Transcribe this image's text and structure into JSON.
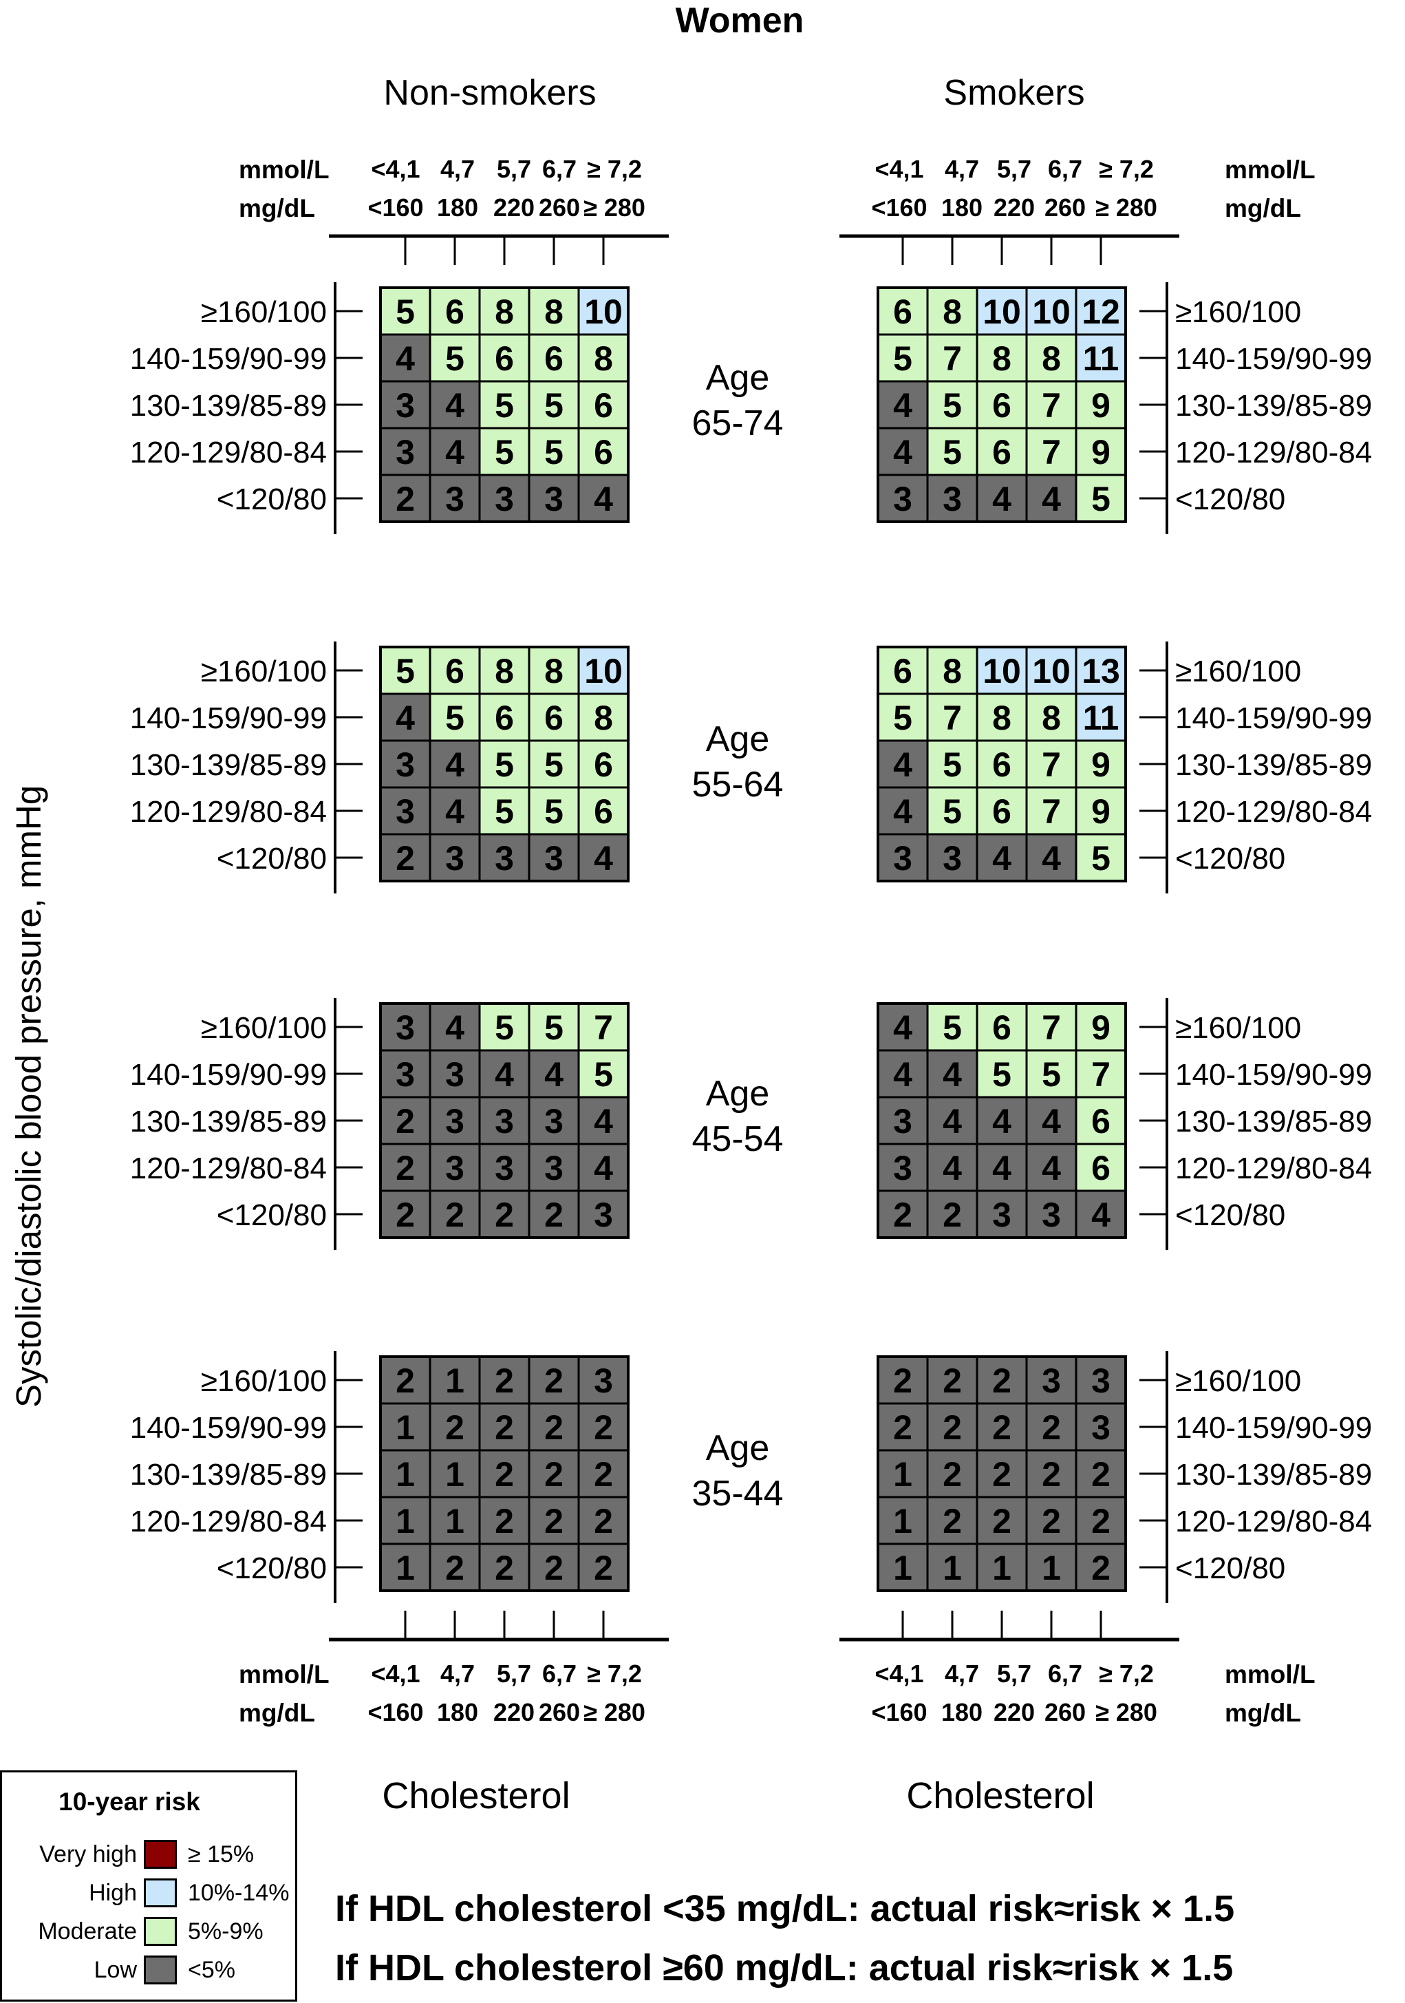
{
  "title": "Women",
  "groups": {
    "left": "Non-smokers",
    "right": "Smokers"
  },
  "axis_labels": {
    "mmol_label": "mmol/L",
    "mgdl_label": "mg/dL",
    "mmol_left": [
      "<4,1",
      "4,7",
      "5,7",
      "6,7",
      "≥ 7,2"
    ],
    "mgdl_left": [
      "<160",
      "180",
      "220",
      "260",
      "≥ 280"
    ]
  },
  "ylabel": "Systolic/diastolic blood pressure, mmHg",
  "bp_levels": [
    "≥160/100",
    "140-159/90-99",
    "130-139/85-89",
    "120-129/80-84",
    "<120/80"
  ],
  "ages": [
    {
      "l1": "Age",
      "l2": "65-74"
    },
    {
      "l1": "Age",
      "l2": "55-64"
    },
    {
      "l1": "Age",
      "l2": "45-54"
    },
    {
      "l1": "Age",
      "l2": "35-44"
    }
  ],
  "xlabel": "Cholesterol",
  "legend": {
    "title": "10-year risk",
    "items": [
      {
        "name": "Very high",
        "range": "≥ 15%",
        "color": "#8b0000"
      },
      {
        "name": "High",
        "range": "10%-14%",
        "color": "#c9e6fa"
      },
      {
        "name": "Moderate",
        "range": "5%-9%",
        "color": "#d1f6c2"
      },
      {
        "name": "Low",
        "range": "<5%",
        "color": "#6e6e6e"
      }
    ]
  },
  "notes": [
    "If HDL cholesterol <35 mg/dL: actual risk≈risk × 1.5",
    "If HDL cholesterol ≥60 mg/dL: actual risk≈risk × 1.5"
  ],
  "chart_data": {
    "type": "heatmap",
    "title": "Women",
    "x_categories_mmol": [
      "<4,1",
      "4,7",
      "5,7",
      "6,7",
      "≥ 7,2"
    ],
    "x_categories_mgdl": [
      "<160",
      "180",
      "220",
      "260",
      "≥ 280"
    ],
    "y_categories": [
      "≥160/100",
      "140-159/90-99",
      "130-139/85-89",
      "120-129/80-84",
      "<120/80"
    ],
    "xlabel": "Cholesterol",
    "ylabel": "Systolic/diastolic blood pressure, mmHg",
    "value_unit": "10-year risk (%)",
    "panels": [
      {
        "smoking": "Non-smokers",
        "age": "65-74",
        "values": [
          [
            5,
            6,
            8,
            8,
            10
          ],
          [
            4,
            5,
            6,
            6,
            8
          ],
          [
            3,
            4,
            5,
            5,
            6
          ],
          [
            3,
            4,
            5,
            5,
            6
          ],
          [
            2,
            3,
            3,
            3,
            4
          ]
        ]
      },
      {
        "smoking": "Smokers",
        "age": "65-74",
        "values": [
          [
            6,
            8,
            10,
            10,
            12
          ],
          [
            5,
            7,
            8,
            8,
            11
          ],
          [
            4,
            5,
            6,
            7,
            9
          ],
          [
            4,
            5,
            6,
            7,
            9
          ],
          [
            3,
            3,
            4,
            4,
            5
          ]
        ]
      },
      {
        "smoking": "Non-smokers",
        "age": "55-64",
        "values": [
          [
            5,
            6,
            8,
            8,
            10
          ],
          [
            4,
            5,
            6,
            6,
            8
          ],
          [
            3,
            4,
            5,
            5,
            6
          ],
          [
            3,
            4,
            5,
            5,
            6
          ],
          [
            2,
            3,
            3,
            3,
            4
          ]
        ]
      },
      {
        "smoking": "Smokers",
        "age": "55-64",
        "values": [
          [
            6,
            8,
            10,
            10,
            13
          ],
          [
            5,
            7,
            8,
            8,
            11
          ],
          [
            4,
            5,
            6,
            7,
            9
          ],
          [
            4,
            5,
            6,
            7,
            9
          ],
          [
            3,
            3,
            4,
            4,
            5
          ]
        ]
      },
      {
        "smoking": "Non-smokers",
        "age": "45-54",
        "values": [
          [
            3,
            4,
            5,
            5,
            7
          ],
          [
            3,
            3,
            4,
            4,
            5
          ],
          [
            2,
            3,
            3,
            3,
            4
          ],
          [
            2,
            3,
            3,
            3,
            4
          ],
          [
            2,
            2,
            2,
            2,
            3
          ]
        ]
      },
      {
        "smoking": "Smokers",
        "age": "45-54",
        "values": [
          [
            4,
            5,
            6,
            7,
            9
          ],
          [
            4,
            4,
            5,
            5,
            7
          ],
          [
            3,
            4,
            4,
            4,
            6
          ],
          [
            3,
            4,
            4,
            4,
            6
          ],
          [
            2,
            2,
            3,
            3,
            4
          ]
        ]
      },
      {
        "smoking": "Non-smokers",
        "age": "35-44",
        "values": [
          [
            2,
            1,
            2,
            2,
            3
          ],
          [
            1,
            2,
            2,
            2,
            2
          ],
          [
            1,
            1,
            2,
            2,
            2
          ],
          [
            1,
            1,
            2,
            2,
            2
          ],
          [
            1,
            2,
            2,
            2,
            2
          ]
        ]
      },
      {
        "smoking": "Smokers",
        "age": "35-44",
        "values": [
          [
            2,
            2,
            2,
            3,
            3
          ],
          [
            2,
            2,
            2,
            2,
            3
          ],
          [
            1,
            2,
            2,
            2,
            2
          ],
          [
            1,
            2,
            2,
            2,
            2
          ],
          [
            1,
            1,
            1,
            1,
            2
          ]
        ]
      }
    ],
    "risk_categories": [
      {
        "name": "Very high",
        "range": "≥ 15%",
        "color": "#8b0000"
      },
      {
        "name": "High",
        "range": "10%-14%",
        "color": "#c9e6fa"
      },
      {
        "name": "Moderate",
        "range": "5%-9%",
        "color": "#d1f6c2"
      },
      {
        "name": "Low",
        "range": "<5%",
        "color": "#6e6e6e"
      }
    ]
  }
}
